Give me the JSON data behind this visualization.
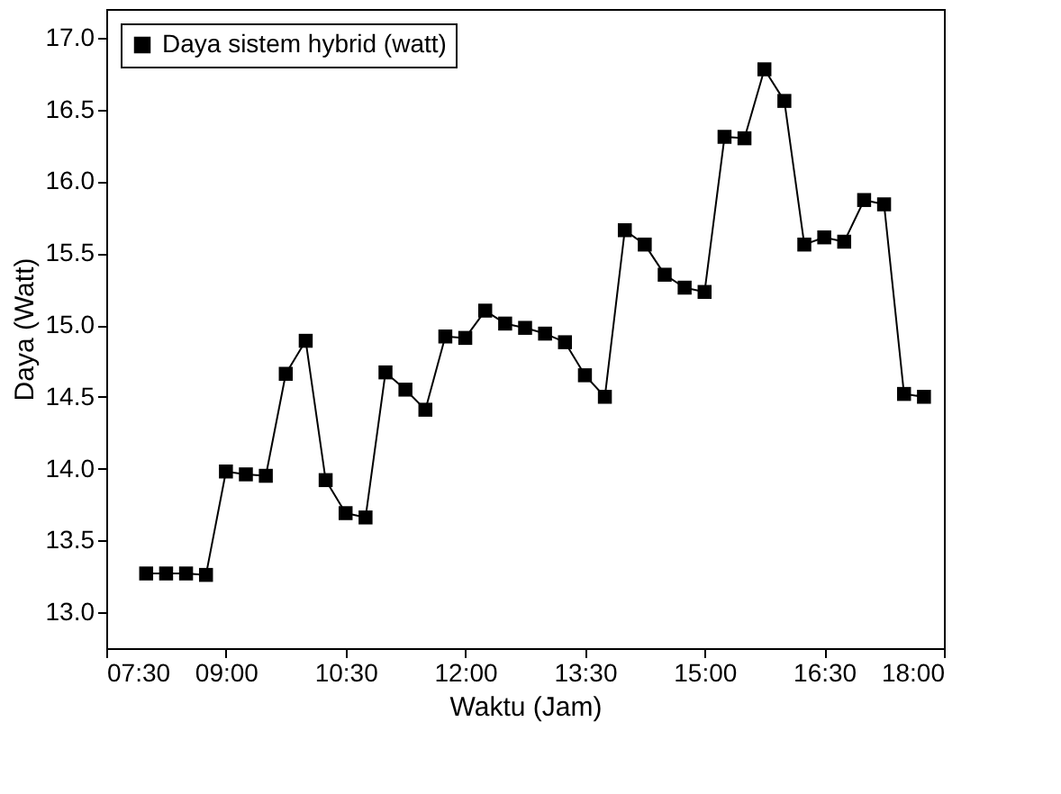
{
  "chart_data": {
    "type": "line",
    "xlabel": "Waktu (Jam)",
    "ylabel": "Daya (Watt)",
    "x": [
      8,
      8.25,
      8.5,
      8.75,
      9,
      9.25,
      9.5,
      9.75,
      10,
      10.25,
      10.5,
      10.75,
      11,
      11.25,
      11.5,
      11.75,
      12,
      12.25,
      12.5,
      12.75,
      13,
      13.25,
      13.5,
      13.75,
      14,
      14.25,
      14.5,
      14.75,
      15,
      15.25,
      15.5,
      15.75,
      16,
      16.25,
      16.5,
      16.75,
      17,
      17.25,
      17.5,
      17.75
    ],
    "series": [
      {
        "name": "Daya sistem hybrid (watt)",
        "color": "#000000",
        "values": [
          13.27,
          13.27,
          13.27,
          13.26,
          13.98,
          13.96,
          13.95,
          14.66,
          14.89,
          13.92,
          13.69,
          13.66,
          14.67,
          14.55,
          14.41,
          14.92,
          14.91,
          15.1,
          15.01,
          14.98,
          14.94,
          14.88,
          14.65,
          14.5,
          15.66,
          15.56,
          15.35,
          15.26,
          15.23,
          16.31,
          16.3,
          16.78,
          16.56,
          15.56,
          15.61,
          15.58,
          15.87,
          15.84,
          14.52,
          14.5
        ]
      }
    ],
    "xlim": [
      7.5,
      18
    ],
    "xticks": [
      {
        "value": 7.5,
        "label": "07:30"
      },
      {
        "value": 9,
        "label": "09:00"
      },
      {
        "value": 10.5,
        "label": "10:30"
      },
      {
        "value": 12,
        "label": "12:00"
      },
      {
        "value": 13.5,
        "label": "13:30"
      },
      {
        "value": 15,
        "label": "15:00"
      },
      {
        "value": 16.5,
        "label": "16:30"
      },
      {
        "value": 18,
        "label": "18:00"
      }
    ],
    "ylim": [
      12.75,
      17.2
    ],
    "yticks": [
      {
        "value": 13,
        "label": "13.0"
      },
      {
        "value": 13.5,
        "label": "13.5"
      },
      {
        "value": 14,
        "label": "14.0"
      },
      {
        "value": 14.5,
        "label": "14.5"
      },
      {
        "value": 15,
        "label": "15.0"
      },
      {
        "value": 15.5,
        "label": "15.5"
      },
      {
        "value": 16,
        "label": "16.0"
      },
      {
        "value": 16.5,
        "label": "16.5"
      },
      {
        "value": 17,
        "label": "17.0"
      }
    ],
    "grid": false,
    "legend": "top left",
    "marker": "square",
    "line_style": "solid"
  }
}
